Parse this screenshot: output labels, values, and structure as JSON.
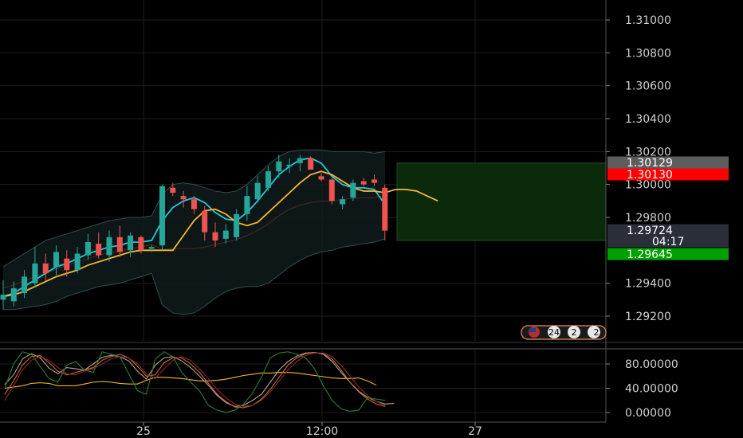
{
  "chart_data": [
    {
      "type": "candlestick",
      "title": "",
      "y_ticks": [
        "1.31000",
        "1.30800",
        "1.30600",
        "1.30400",
        "1.30200",
        "1.30000",
        "1.29800",
        "1.29400",
        "1.29200"
      ],
      "ylim": [
        1.291,
        1.312
      ],
      "x_ticks": [
        "25",
        "12:00",
        "27"
      ],
      "price_labels": [
        {
          "text": "1.30129",
          "value": 1.30129,
          "color": "#5d5d5d"
        },
        {
          "text": "1.30130",
          "value": 1.3013,
          "color": "#ff0000"
        },
        {
          "text": "1.29724",
          "value": 1.29724,
          "color": "#2a2e39"
        },
        {
          "text": "04:17",
          "value": 1.2969,
          "color": "#2a2e39"
        },
        {
          "text": "1.29645",
          "value": 1.29645,
          "color": "#00a000"
        }
      ],
      "candles": [
        {
          "o": 1.293,
          "h": 1.2942,
          "l": 1.2924,
          "c": 1.2933
        },
        {
          "o": 1.2929,
          "h": 1.2941,
          "l": 1.2926,
          "c": 1.2937
        },
        {
          "o": 1.2934,
          "h": 1.2948,
          "l": 1.2931,
          "c": 1.2944
        },
        {
          "o": 1.294,
          "h": 1.2962,
          "l": 1.2938,
          "c": 1.2952
        },
        {
          "o": 1.2952,
          "h": 1.2958,
          "l": 1.2941,
          "c": 1.2946
        },
        {
          "o": 1.295,
          "h": 1.2963,
          "l": 1.2945,
          "c": 1.2959
        },
        {
          "o": 1.2955,
          "h": 1.296,
          "l": 1.2944,
          "c": 1.2948
        },
        {
          "o": 1.2948,
          "h": 1.2962,
          "l": 1.2946,
          "c": 1.2958
        },
        {
          "o": 1.2957,
          "h": 1.297,
          "l": 1.2954,
          "c": 1.2965
        },
        {
          "o": 1.2964,
          "h": 1.2971,
          "l": 1.2955,
          "c": 1.2957
        },
        {
          "o": 1.2957,
          "h": 1.2972,
          "l": 1.2953,
          "c": 1.2968
        },
        {
          "o": 1.2968,
          "h": 1.2975,
          "l": 1.2956,
          "c": 1.2959
        },
        {
          "o": 1.296,
          "h": 1.2971,
          "l": 1.2956,
          "c": 1.2969
        },
        {
          "o": 1.2968,
          "h": 1.2969,
          "l": 1.2958,
          "c": 1.296
        },
        {
          "o": 1.2961,
          "h": 1.2963,
          "l": 1.2959,
          "c": 1.2962
        },
        {
          "o": 1.2963,
          "h": 1.3,
          "l": 1.296,
          "c": 1.2999
        },
        {
          "o": 1.2998,
          "h": 1.3001,
          "l": 1.2993,
          "c": 1.2995
        },
        {
          "o": 1.2993,
          "h": 1.2996,
          "l": 1.2986,
          "c": 1.2991
        },
        {
          "o": 1.2991,
          "h": 1.2993,
          "l": 1.2982,
          "c": 1.2985
        },
        {
          "o": 1.2984,
          "h": 1.2987,
          "l": 1.2966,
          "c": 1.2971
        },
        {
          "o": 1.2971,
          "h": 1.2977,
          "l": 1.2962,
          "c": 1.2966
        },
        {
          "o": 1.2967,
          "h": 1.2976,
          "l": 1.2964,
          "c": 1.2972
        },
        {
          "o": 1.2968,
          "h": 1.2985,
          "l": 1.2966,
          "c": 1.2982
        },
        {
          "o": 1.2982,
          "h": 1.2999,
          "l": 1.2978,
          "c": 1.2993
        },
        {
          "o": 1.2991,
          "h": 1.3005,
          "l": 1.2989,
          "c": 1.3001
        },
        {
          "o": 1.2998,
          "h": 1.3011,
          "l": 1.2996,
          "c": 1.3008
        },
        {
          "o": 1.3008,
          "h": 1.3018,
          "l": 1.3004,
          "c": 1.3014
        },
        {
          "o": 1.3011,
          "h": 1.3016,
          "l": 1.3007,
          "c": 1.3012
        },
        {
          "o": 1.3013,
          "h": 1.3018,
          "l": 1.3008,
          "c": 1.3016
        },
        {
          "o": 1.3016,
          "h": 1.3017,
          "l": 1.3009,
          "c": 1.3009
        },
        {
          "o": 1.3005,
          "h": 1.3007,
          "l": 1.3002,
          "c": 1.3003
        },
        {
          "o": 1.3003,
          "h": 1.3004,
          "l": 1.2988,
          "c": 1.299
        },
        {
          "o": 1.2988,
          "h": 1.2993,
          "l": 1.2985,
          "c": 1.2991
        },
        {
          "o": 1.2992,
          "h": 1.3003,
          "l": 1.299,
          "c": 1.3001
        },
        {
          "o": 1.3002,
          "h": 1.3004,
          "l": 1.2999,
          "c": 1.3
        },
        {
          "o": 1.3003,
          "h": 1.3006,
          "l": 1.2999,
          "c": 1.3001
        },
        {
          "o": 1.2998,
          "h": 1.3,
          "l": 1.2966,
          "c": 1.2972
        }
      ],
      "overlays": [
        {
          "name": "cyan MA",
          "color": "#26c6da",
          "values": [
            1.2932,
            1.2934,
            1.2938,
            1.2942,
            1.2946,
            1.295,
            1.2952,
            1.2955,
            1.2958,
            1.296,
            1.2962,
            1.2963,
            1.2965,
            1.2965,
            1.2966,
            1.2978,
            1.2986,
            1.299,
            1.2992,
            1.2989,
            1.2983,
            1.2979,
            1.2978,
            1.2983,
            1.299,
            1.2998,
            1.3006,
            1.3011,
            1.3015,
            1.3016,
            1.3013,
            1.3005,
            1.3,
            1.2998,
            1.2998,
            1.2997,
            1.2988
          ]
        },
        {
          "name": "orange MA",
          "color": "#f5b731",
          "values": [
            1.2932,
            1.2933,
            1.2935,
            1.2938,
            1.2941,
            1.2944,
            1.2946,
            1.2948,
            1.2951,
            1.2953,
            1.2955,
            1.2957,
            1.2959,
            1.296,
            1.296,
            1.296,
            1.296,
            1.2969,
            1.2978,
            1.2984,
            1.2985,
            1.2982,
            1.2977,
            1.2975,
            1.2977,
            1.2983,
            1.2989,
            1.2995,
            1.3001,
            1.3006,
            1.3008,
            1.3006,
            1.3002,
            1.2998,
            1.2996,
            1.2996,
            1.2995,
            1.2997,
            1.2997,
            1.2996,
            1.2993,
            1.299
          ]
        }
      ],
      "bands": {
        "upper": [
          1.295,
          1.2954,
          1.2958,
          1.2962,
          1.2966,
          1.2968,
          1.297,
          1.2972,
          1.2974,
          1.2976,
          1.2978,
          1.2979,
          1.298,
          1.298,
          1.2981,
          1.2994,
          1.3,
          1.3001,
          1.3,
          1.2998,
          1.2996,
          1.2995,
          1.2996,
          1.3,
          1.3006,
          1.3012,
          1.3017,
          1.302,
          1.3021,
          1.3021,
          1.3021,
          1.302,
          1.302,
          1.302,
          1.302,
          1.3019,
          1.302
        ],
        "lower": [
          1.2924,
          1.2924,
          1.2925,
          1.2926,
          1.2927,
          1.2929,
          1.2932,
          1.2934,
          1.2936,
          1.2938,
          1.2939,
          1.294,
          1.2942,
          1.2944,
          1.2946,
          1.2927,
          1.2922,
          1.2921,
          1.2922,
          1.2926,
          1.2931,
          1.2935,
          1.2937,
          1.2938,
          1.2938,
          1.294,
          1.2945,
          1.295,
          1.2954,
          1.2957,
          1.2959,
          1.296,
          1.2962,
          1.2963,
          1.2964,
          1.2965,
          1.2967
        ]
      },
      "long_position": {
        "entry": 1.3,
        "top": 1.3013,
        "bottom": 1.2966
      }
    },
    {
      "type": "line",
      "y_ticks": [
        "80.00000",
        "40.00000",
        "0.00000"
      ],
      "ylim": [
        -8,
        108
      ],
      "series": [
        {
          "color": "#f5b731",
          "values": [
            40,
            42,
            44,
            48,
            49,
            48,
            44,
            44,
            44,
            47,
            50,
            51,
            50,
            48,
            47,
            47,
            53,
            58,
            58,
            57,
            56,
            54,
            52,
            52,
            53,
            55,
            58,
            61,
            63,
            65,
            65,
            66,
            66,
            65,
            63,
            61,
            59,
            57,
            56,
            56,
            57,
            52,
            45
          ]
        },
        {
          "color": "#b5a394",
          "values": [
            46,
            62,
            88,
            97,
            90,
            73,
            64,
            74,
            72,
            70,
            80,
            91,
            94,
            92,
            85,
            68,
            55,
            78,
            90,
            92,
            85,
            74,
            60,
            45,
            28,
            16,
            10,
            12,
            20,
            30,
            50,
            70,
            84,
            93,
            98,
            99,
            96,
            84,
            66,
            50,
            35,
            25,
            18,
            14,
            15
          ]
        },
        {
          "color": "#c96a3a",
          "values": [
            30,
            52,
            78,
            92,
            94,
            82,
            68,
            62,
            66,
            70,
            74,
            86,
            92,
            96,
            90,
            76,
            60,
            62,
            82,
            90,
            90,
            80,
            66,
            48,
            30,
            18,
            9,
            8,
            12,
            22,
            38,
            58,
            78,
            90,
            97,
            99,
            97,
            88,
            70,
            50,
            34,
            22,
            14,
            10
          ]
        },
        {
          "color": "#2e7d32",
          "values": [
            40,
            80,
            100,
            96,
            76,
            56,
            50,
            78,
            84,
            70,
            66,
            100,
            96,
            92,
            64,
            36,
            30,
            88,
            100,
            92,
            66,
            50,
            36,
            12,
            4,
            0,
            4,
            14,
            32,
            58,
            90,
            98,
            100,
            96,
            90,
            72,
            44,
            20,
            6,
            2,
            4,
            24,
            22,
            20
          ]
        },
        {
          "color": "#8c2a2a",
          "values": [
            20,
            44,
            70,
            86,
            92,
            86,
            74,
            64,
            62,
            68,
            72,
            80,
            88,
            92,
            90,
            80,
            64,
            56,
            72,
            86,
            92,
            86,
            72,
            56,
            38,
            24,
            14,
            10,
            12,
            20,
            34,
            52,
            70,
            84,
            94,
            98,
            98,
            92,
            78,
            60,
            42,
            28,
            18,
            12
          ]
        }
      ]
    }
  ],
  "flags_badge": {
    "count1": "24",
    "count2": "2",
    "count3": "2"
  }
}
